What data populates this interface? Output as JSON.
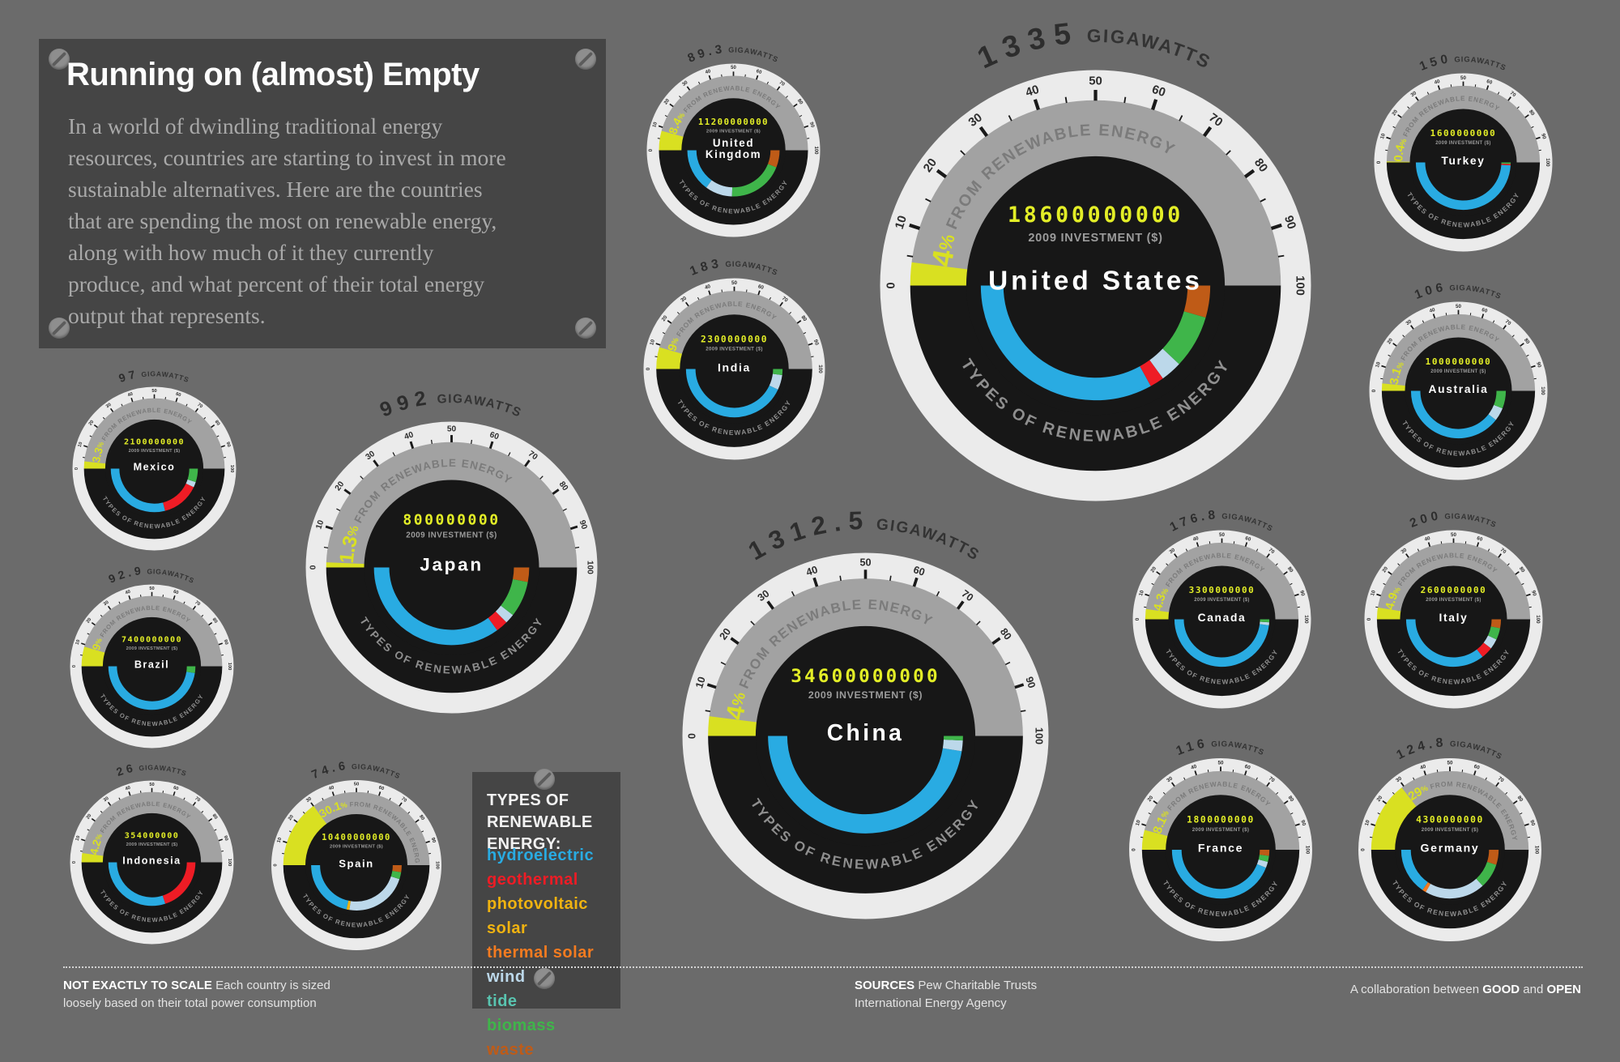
{
  "header": {
    "title": "Running on (almost) Empty",
    "description": "In a world of dwindling traditional energy\nresources, countries are starting to invest in more\nsustainable alternatives. Here are the countries\nthat are spending the most on renewable energy,\nalong with how much of it they currently\nproduce, and what percent of their total energy\noutput that represents."
  },
  "legend": {
    "title": "TYPES OF\nRENEWABLE ENERGY:",
    "items": [
      {
        "label": "hydroelectric",
        "color": "#29abe2"
      },
      {
        "label": "geothermal",
        "color": "#ee1c25"
      },
      {
        "label": "photovoltaic solar",
        "color": "#f0b310"
      },
      {
        "label": "thermal solar",
        "color": "#f47b20"
      },
      {
        "label": "wind",
        "color": "#bcd8ea"
      },
      {
        "label": "tide",
        "color": "#59c4b0"
      },
      {
        "label": "biomass",
        "color": "#3fb54a"
      },
      {
        "label": "waste",
        "color": "#bf5b17"
      }
    ]
  },
  "labels": {
    "investment": "2009 INVESTMENT ($)",
    "gigawatts_suffix": " GIGAWATTS",
    "from_renewable": " FROM RENEWABLE ENERGY",
    "percent_sign": "%",
    "types_arc": "TYPES OF RENEWABLE ENERGY"
  },
  "footer": {
    "left_bold": "NOT EXACTLY TO SCALE",
    "left_rest_line1": " Each country is sized",
    "left_line2": "loosely based on their total power consumption",
    "mid_bold": "SOURCES",
    "mid_rest_line1": " Pew Charitable Trusts",
    "mid_line2": "International Energy Agency",
    "credit_prefix": "A collaboration between ",
    "credit_good": "GOOD",
    "credit_and": " and ",
    "credit_open": "OPEN"
  },
  "chart_data": {
    "type": "gauge",
    "scale_min": 0,
    "scale_max": 100,
    "scale_unit": "% from renewable energy",
    "tick_step_major": 10,
    "tick_step_minor": 5,
    "colors": {
      "ring": "#ebebeb",
      "face": "#171717",
      "scale_band": "#a2a2a2",
      "percent_fill": "#d9e021",
      "led_text": "#e3ee27"
    },
    "countries": [
      {
        "key": "united-kingdom",
        "name": "United Kingdom",
        "name_lines": [
          "United",
          "Kingdom"
        ],
        "gigawatts": "89.3",
        "pct_renewable": 8.4,
        "pct_display": "8.4",
        "investment": "11200000000",
        "mix": [
          {
            "type": "hydroelectric",
            "share": 0.3
          },
          {
            "type": "wind",
            "share": 0.19
          },
          {
            "type": "biomass",
            "share": 0.39
          },
          {
            "type": "waste",
            "share": 0.12
          }
        ]
      },
      {
        "key": "united-states",
        "name": "United States",
        "name_lines": [
          "United States"
        ],
        "gigawatts": "1335",
        "pct_renewable": 4,
        "pct_display": "4",
        "investment": "18600000000",
        "mix": [
          {
            "type": "hydroelectric",
            "share": 0.66
          },
          {
            "type": "geothermal",
            "share": 0.04
          },
          {
            "type": "wind",
            "share": 0.06
          },
          {
            "type": "biomass",
            "share": 0.15
          },
          {
            "type": "waste",
            "share": 0.09
          }
        ]
      },
      {
        "key": "turkey",
        "name": "Turkey",
        "name_lines": [
          "Turkey"
        ],
        "gigawatts": "150",
        "pct_renewable": 0.4,
        "pct_display": "0.4",
        "investment": "1600000000",
        "mix": [
          {
            "type": "hydroelectric",
            "share": 0.98
          },
          {
            "type": "geothermal",
            "share": 0.01
          },
          {
            "type": "biomass",
            "share": 0.01
          }
        ]
      },
      {
        "key": "india",
        "name": "India",
        "name_lines": [
          "India"
        ],
        "gigawatts": "183",
        "pct_renewable": 9,
        "pct_display": "9",
        "investment": "2300000000",
        "mix": [
          {
            "type": "hydroelectric",
            "share": 0.86
          },
          {
            "type": "wind",
            "share": 0.1
          },
          {
            "type": "biomass",
            "share": 0.04
          }
        ]
      },
      {
        "key": "australia",
        "name": "Australia",
        "name_lines": [
          "Australia"
        ],
        "gigawatts": "106",
        "pct_renewable": 3.1,
        "pct_display": "3.1",
        "investment": "1000000000",
        "mix": [
          {
            "type": "hydroelectric",
            "share": 0.79
          },
          {
            "type": "wind",
            "share": 0.09
          },
          {
            "type": "biomass",
            "share": 0.12
          }
        ]
      },
      {
        "key": "mexico",
        "name": "Mexico",
        "name_lines": [
          "Mexico"
        ],
        "gigawatts": "97",
        "pct_renewable": 3.3,
        "pct_display": "3.3",
        "investment": "2100000000",
        "mix": [
          {
            "type": "hydroelectric",
            "share": 0.58
          },
          {
            "type": "geothermal",
            "share": 0.28
          },
          {
            "type": "wind",
            "share": 0.04
          },
          {
            "type": "biomass",
            "share": 0.1
          }
        ]
      },
      {
        "key": "japan",
        "name": "Japan",
        "name_lines": [
          "Japan"
        ],
        "gigawatts": "992",
        "pct_renewable": 1.3,
        "pct_display": "1.3",
        "investment": "800000000",
        "mix": [
          {
            "type": "hydroelectric",
            "share": 0.7
          },
          {
            "type": "geothermal",
            "share": 0.05
          },
          {
            "type": "wind",
            "share": 0.04
          },
          {
            "type": "biomass",
            "share": 0.15
          },
          {
            "type": "waste",
            "share": 0.06
          }
        ]
      },
      {
        "key": "brazil",
        "name": "Brazil",
        "name_lines": [
          "Brazil"
        ],
        "gigawatts": "92.9",
        "pct_renewable": 9,
        "pct_display": "9",
        "investment": "7400000000",
        "mix": [
          {
            "type": "hydroelectric",
            "share": 0.95
          },
          {
            "type": "biomass",
            "share": 0.05
          }
        ]
      },
      {
        "key": "china",
        "name": "China",
        "name_lines": [
          "China"
        ],
        "gigawatts": "1312.5",
        "pct_renewable": 4,
        "pct_display": "4",
        "investment": "34600000000",
        "mix": [
          {
            "type": "hydroelectric",
            "share": 0.95
          },
          {
            "type": "wind",
            "share": 0.035
          },
          {
            "type": "biomass",
            "share": 0.015
          }
        ]
      },
      {
        "key": "canada",
        "name": "Canada",
        "name_lines": [
          "Canada"
        ],
        "gigawatts": "176.8",
        "pct_renewable": 4.3,
        "pct_display": "4.3",
        "investment": "3300000000",
        "mix": [
          {
            "type": "hydroelectric",
            "share": 0.96
          },
          {
            "type": "wind",
            "share": 0.02
          },
          {
            "type": "biomass",
            "share": 0.02
          }
        ]
      },
      {
        "key": "italy",
        "name": "Italy",
        "name_lines": [
          "Italy"
        ],
        "gigawatts": "200",
        "pct_renewable": 4.9,
        "pct_display": "4.9",
        "investment": "2600000000",
        "mix": [
          {
            "type": "hydroelectric",
            "share": 0.71
          },
          {
            "type": "geothermal",
            "share": 0.08
          },
          {
            "type": "wind",
            "share": 0.07
          },
          {
            "type": "biomass",
            "share": 0.08
          },
          {
            "type": "waste",
            "share": 0.06
          }
        ]
      },
      {
        "key": "indonesia",
        "name": "Indonesia",
        "name_lines": [
          "Indonesia"
        ],
        "gigawatts": "26",
        "pct_renewable": 4.2,
        "pct_display": "4.2",
        "investment": "354000000",
        "mix": [
          {
            "type": "hydroelectric",
            "share": 0.6
          },
          {
            "type": "geothermal",
            "share": 0.4
          }
        ]
      },
      {
        "key": "spain",
        "name": "Spain",
        "name_lines": [
          "Spain"
        ],
        "gigawatts": "74.6",
        "pct_renewable": 30.1,
        "pct_display": "30.1",
        "investment": "10400000000",
        "mix": [
          {
            "type": "hydroelectric",
            "share": 0.43
          },
          {
            "type": "photovoltaic solar",
            "share": 0.02
          },
          {
            "type": "wind",
            "share": 0.45
          },
          {
            "type": "biomass",
            "share": 0.05
          },
          {
            "type": "waste",
            "share": 0.05
          }
        ]
      },
      {
        "key": "france",
        "name": "France",
        "name_lines": [
          "France"
        ],
        "gigawatts": "116",
        "pct_renewable": 8.1,
        "pct_display": "8.1",
        "investment": "1800000000",
        "mix": [
          {
            "type": "hydroelectric",
            "share": 0.88
          },
          {
            "type": "wind",
            "share": 0.04
          },
          {
            "type": "biomass",
            "share": 0.04
          },
          {
            "type": "waste",
            "share": 0.04
          }
        ]
      },
      {
        "key": "germany",
        "name": "Germany",
        "name_lines": [
          "Germany"
        ],
        "gigawatts": "124.8",
        "pct_renewable": 29,
        "pct_display": "29",
        "investment": "4300000000",
        "mix": [
          {
            "type": "hydroelectric",
            "share": 0.31
          },
          {
            "type": "thermal solar",
            "share": 0.025
          },
          {
            "type": "wind",
            "share": 0.4
          },
          {
            "type": "biomass",
            "share": 0.165
          },
          {
            "type": "waste",
            "share": 0.1
          }
        ]
      }
    ]
  }
}
